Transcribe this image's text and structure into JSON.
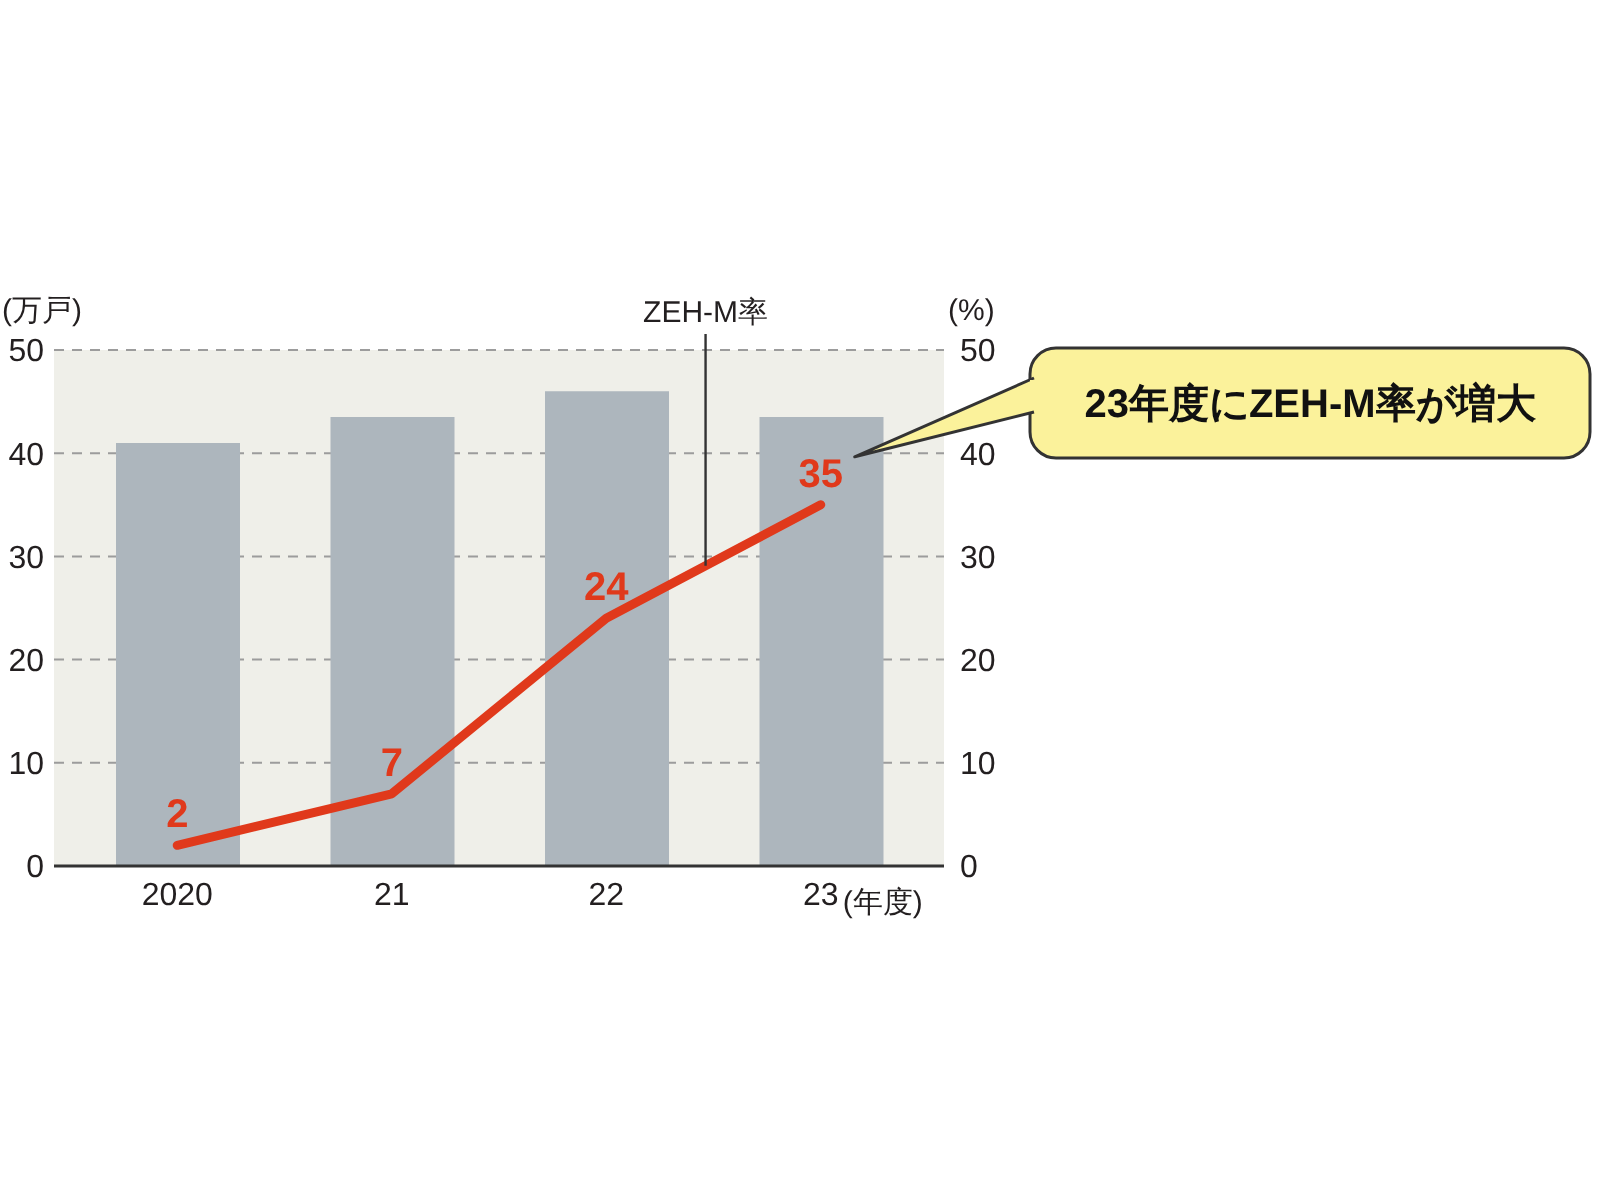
{
  "chart_data": {
    "type": "bar",
    "categories": [
      "2020",
      "21",
      "22",
      "23"
    ],
    "xlabel": "(年度)",
    "ylabel": "(万戸)",
    "y2label": "(%)",
    "series": [
      {
        "color": "#adb6bd",
        "values": [
          41,
          43.5,
          46,
          43.5
        ]
      },
      {
        "type": "line",
        "name": "ZEH-M率",
        "axis": "y2",
        "color": "#e0391b",
        "values": [
          2,
          7,
          24,
          35
        ],
        "value_labels": [
          "2",
          "7",
          "24",
          "35"
        ]
      }
    ],
    "ylim": [
      0,
      50
    ],
    "yticks": [
      0,
      10,
      20,
      30,
      40,
      50
    ],
    "y2lim": [
      0,
      50
    ],
    "y2ticks": [
      0,
      10,
      20,
      30,
      40,
      50
    ],
    "grid": "y",
    "marker": "none",
    "annotations": [
      "23年度にZEH-M率が増大"
    ]
  }
}
